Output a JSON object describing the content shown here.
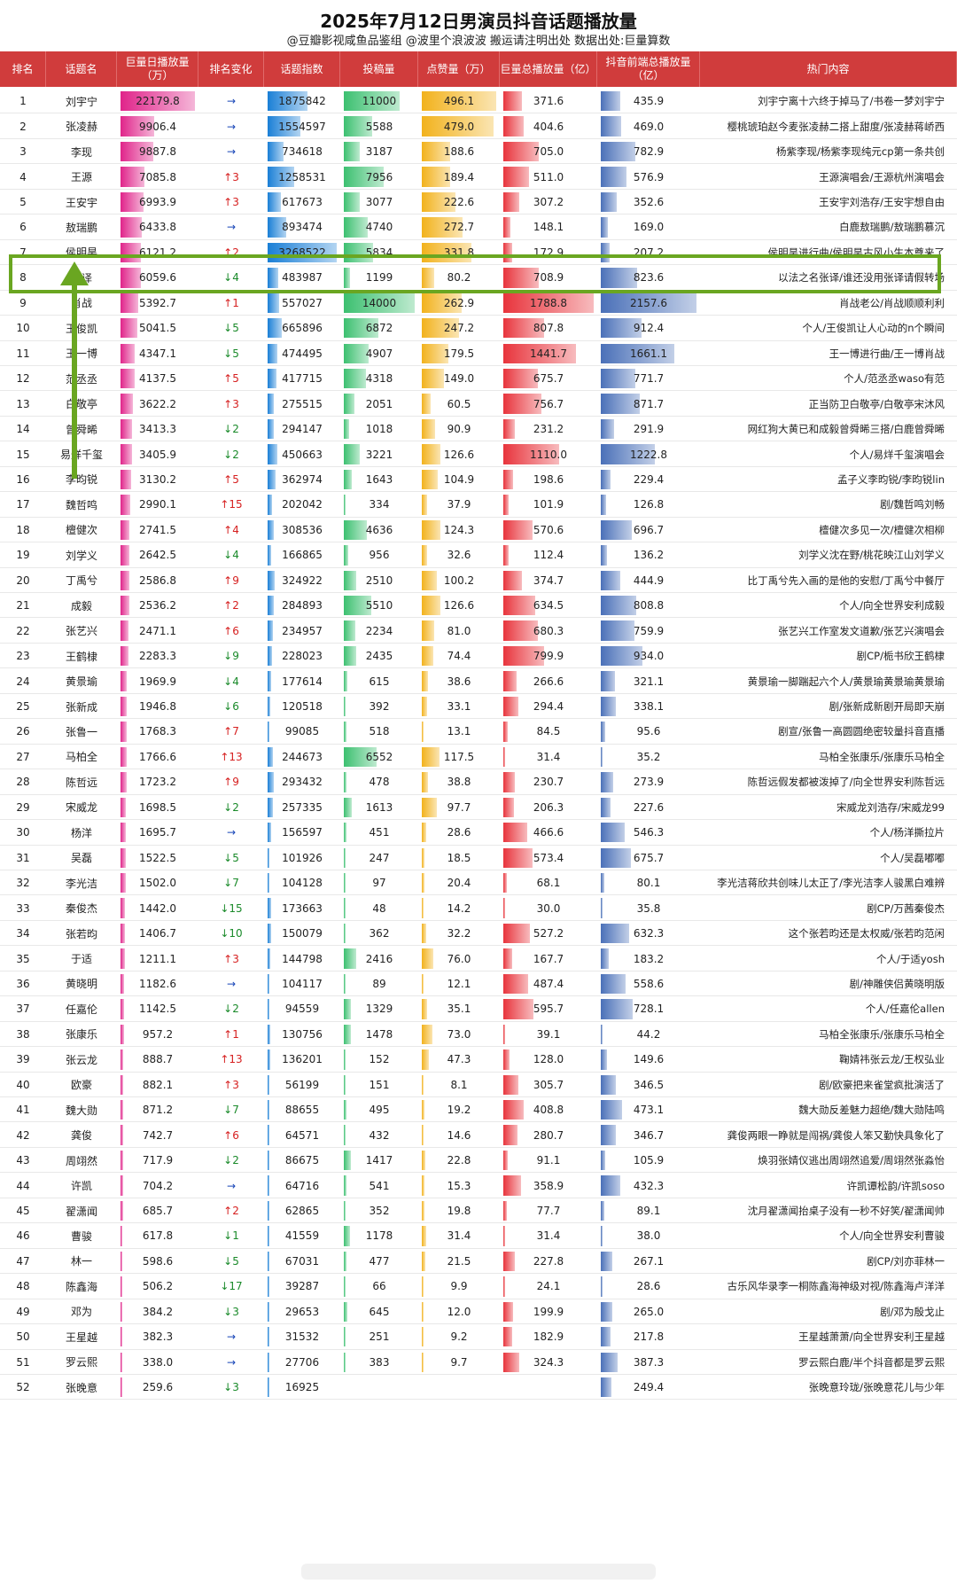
{
  "title": "2025年7月12日男演员抖音话题播放量",
  "subtitle": "@豆瓣影视咸鱼品鉴组 @波里个浪波波  搬运请注明出处  数据出处:巨量算数",
  "headers": [
    "排名",
    "话题名",
    "巨量日播放量（万）",
    "排名变化",
    "话题指数",
    "投稿量",
    "点赞量（万）",
    "巨量总播放量（亿）",
    "抖音前端总播放量（亿）",
    "热门内容"
  ],
  "colors": {
    "header": "#d03c3c",
    "col2": "#e0248a",
    "col4": "#1a7fd6",
    "col5": "#3cc070",
    "col6": "#f2b21c",
    "col7": "#e8343c",
    "col8": "#4a70b8",
    "highlight": "#6aa621"
  },
  "chart_data": {
    "type": "table",
    "columns": [
      "排名",
      "话题名",
      "巨量日播放量（万）",
      "排名变化",
      "话题指数",
      "投稿量",
      "点赞量（万）",
      "巨量总播放量（亿）",
      "抖音前端总播放量（亿）",
      "热门内容"
    ],
    "rows": [
      [
        "1",
        "刘宇宁",
        "22179.8",
        "→",
        "1875842",
        "11000",
        "496.1",
        "371.6",
        "435.9",
        "刘宇宁离十六终于掉马了/书卷一梦刘宇宁"
      ],
      [
        "2",
        "张凌赫",
        "9906.4",
        "→",
        "1554597",
        "5588",
        "479.0",
        "404.6",
        "469.0",
        "樱桃琥珀赵今麦张凌赫二搭上甜度/张凌赫蒋峤西"
      ],
      [
        "3",
        "李现",
        "9887.8",
        "→",
        "734618",
        "3187",
        "188.6",
        "705.0",
        "782.9",
        "杨紫李现/杨紫李现纯元cp第一条共创"
      ],
      [
        "4",
        "王源",
        "7085.8",
        "↑3",
        "1258531",
        "7956",
        "189.4",
        "511.0",
        "576.9",
        "王源演唱会/王源杭州演唱会"
      ],
      [
        "5",
        "王安宇",
        "6993.9",
        "↑3",
        "617673",
        "3077",
        "222.6",
        "307.2",
        "352.6",
        "王安宇刘浩存/王安宇想自由"
      ],
      [
        "6",
        "敖瑞鹏",
        "6433.8",
        "→",
        "893474",
        "4740",
        "272.7",
        "148.1",
        "169.0",
        "白鹿敖瑞鹏/敖瑞鹏慕沉"
      ],
      [
        "7",
        "侯明昊",
        "6121.2",
        "↑2",
        "3268522",
        "5834",
        "331.8",
        "172.9",
        "207.2",
        "侯明昊进行曲/侯明昊古风小生本尊来了"
      ],
      [
        "8",
        "张译",
        "6059.6",
        "↓4",
        "483987",
        "1199",
        "80.2",
        "708.9",
        "823.6",
        "以法之名张译/谁还没用张译请假转场"
      ],
      [
        "9",
        "肖战",
        "5392.7",
        "↑1",
        "557027",
        "14000",
        "262.9",
        "1788.8",
        "2157.6",
        "肖战老公/肖战顺顺利利"
      ],
      [
        "10",
        "王俊凯",
        "5041.5",
        "↓5",
        "665896",
        "6872",
        "247.2",
        "807.8",
        "912.4",
        "个人/王俊凯让人心动的n个瞬间"
      ],
      [
        "11",
        "王一博",
        "4347.1",
        "↓5",
        "474495",
        "4907",
        "179.5",
        "1441.7",
        "1661.1",
        "王一博进行曲/王一博肖战"
      ],
      [
        "12",
        "范丞丞",
        "4137.5",
        "↑5",
        "417715",
        "4318",
        "149.0",
        "675.7",
        "771.7",
        "个人/范丞丞waso有范"
      ],
      [
        "13",
        "白敬亭",
        "3622.2",
        "↑3",
        "275515",
        "2051",
        "60.5",
        "756.7",
        "871.7",
        "正当防卫白敬亭/白敬亭宋沐风"
      ],
      [
        "14",
        "曾舜晞",
        "3413.3",
        "↓2",
        "294147",
        "1018",
        "90.9",
        "231.2",
        "291.9",
        "网红狗大黄已和成毅曾舜晞三搭/白鹿曾舜晞"
      ],
      [
        "15",
        "易烊千玺",
        "3405.9",
        "↓2",
        "450663",
        "3221",
        "126.6",
        "1110.0",
        "1222.8",
        "个人/易烊千玺演唱会"
      ],
      [
        "16",
        "李昀锐",
        "3130.2",
        "↑5",
        "362974",
        "1643",
        "104.9",
        "198.6",
        "229.4",
        "孟子义李昀锐/李昀锐lin"
      ],
      [
        "17",
        "魏哲鸣",
        "2990.1",
        "↑15",
        "202042",
        "334",
        "37.9",
        "101.9",
        "126.8",
        "剧/魏哲鸣刘畅"
      ],
      [
        "18",
        "檀健次",
        "2741.5",
        "↑4",
        "308536",
        "4636",
        "124.3",
        "570.6",
        "696.7",
        "檀健次多见一次/檀健次相柳"
      ],
      [
        "19",
        "刘学义",
        "2642.5",
        "↓4",
        "166865",
        "956",
        "32.6",
        "112.4",
        "136.2",
        "刘学义沈在野/桃花映江山刘学义"
      ],
      [
        "20",
        "丁禹兮",
        "2586.8",
        "↑9",
        "324922",
        "2510",
        "100.2",
        "374.7",
        "444.9",
        "比丁禹兮先入画的是他的安慰/丁禹兮中餐厅"
      ],
      [
        "21",
        "成毅",
        "2536.2",
        "↑2",
        "284893",
        "5510",
        "126.6",
        "634.5",
        "808.8",
        "个人/向全世界安利成毅"
      ],
      [
        "22",
        "张艺兴",
        "2471.1",
        "↑6",
        "234957",
        "2234",
        "81.0",
        "680.3",
        "759.9",
        "张艺兴工作室发文道歉/张艺兴演唱会"
      ],
      [
        "23",
        "王鹤棣",
        "2283.3",
        "↓9",
        "228023",
        "2435",
        "74.4",
        "799.9",
        "934.0",
        "剧CP/栀书欣王鹤棣"
      ],
      [
        "24",
        "黄景瑜",
        "1969.9",
        "↓4",
        "177614",
        "615",
        "38.6",
        "266.6",
        "321.1",
        "黄景瑜一脚踹起六个人/黄景瑜黄景瑜黄景瑜"
      ],
      [
        "25",
        "张新成",
        "1946.8",
        "↓6",
        "120518",
        "392",
        "33.1",
        "294.4",
        "338.1",
        "剧/张新成新剧开局即天崩"
      ],
      [
        "26",
        "张鲁一",
        "1768.3",
        "↑7",
        "99085",
        "518",
        "13.1",
        "84.5",
        "95.6",
        "剧宣/张鲁一高圆圆绝密较量抖音直播"
      ],
      [
        "27",
        "马柏全",
        "1766.6",
        "↑13",
        "244673",
        "6552",
        "117.5",
        "31.4",
        "35.2",
        "马柏全张康乐/张康乐马柏全"
      ],
      [
        "28",
        "陈哲远",
        "1723.2",
        "↑9",
        "293432",
        "478",
        "38.8",
        "230.7",
        "273.9",
        "陈哲远假发都被泼掉了/向全世界安利陈哲远"
      ],
      [
        "29",
        "宋威龙",
        "1698.5",
        "↓2",
        "257335",
        "1613",
        "97.7",
        "206.3",
        "227.6",
        "宋威龙刘浩存/宋威龙99"
      ],
      [
        "30",
        "杨洋",
        "1695.7",
        "→",
        "156597",
        "451",
        "28.6",
        "466.6",
        "546.3",
        "个人/杨洋撕拉片"
      ],
      [
        "31",
        "吴磊",
        "1522.5",
        "↓5",
        "101926",
        "247",
        "18.5",
        "573.4",
        "675.7",
        "个人/吴磊嘟嘟"
      ],
      [
        "32",
        "李光洁",
        "1502.0",
        "↓7",
        "104128",
        "97",
        "20.4",
        "68.1",
        "80.1",
        "李光洁蒋欣共创味儿太正了/李光洁李人骏黑白难辨"
      ],
      [
        "33",
        "秦俊杰",
        "1442.0",
        "↓15",
        "173663",
        "48",
        "14.2",
        "30.0",
        "35.8",
        "剧CP/万茜秦俊杰"
      ],
      [
        "34",
        "张若昀",
        "1406.7",
        "↓10",
        "150079",
        "362",
        "32.2",
        "527.2",
        "632.3",
        "这个张若昀还是太权威/张若昀范闲"
      ],
      [
        "35",
        "于适",
        "1211.1",
        "↑3",
        "144798",
        "2416",
        "76.0",
        "167.7",
        "183.2",
        "个人/于适yosh"
      ],
      [
        "36",
        "黄晓明",
        "1182.6",
        "→",
        "104117",
        "89",
        "12.1",
        "487.4",
        "558.6",
        "剧/神雕侠侣黄晓明版"
      ],
      [
        "37",
        "任嘉伦",
        "1142.5",
        "↓2",
        "94559",
        "1329",
        "35.1",
        "595.7",
        "728.1",
        "个人/任嘉伦allen"
      ],
      [
        "38",
        "张康乐",
        "957.2",
        "↑1",
        "130756",
        "1478",
        "73.0",
        "39.1",
        "44.2",
        "马柏全张康乐/张康乐马柏全"
      ],
      [
        "39",
        "张云龙",
        "888.7",
        "↑13",
        "136201",
        "152",
        "47.3",
        "128.0",
        "149.6",
        "鞠婧祎张云龙/王权弘业"
      ],
      [
        "40",
        "欧豪",
        "882.1",
        "↑3",
        "56199",
        "151",
        "8.1",
        "305.7",
        "346.5",
        "剧/欧豪把来雀堂疯批演活了"
      ],
      [
        "41",
        "魏大勋",
        "871.2",
        "↓7",
        "88655",
        "495",
        "19.2",
        "408.8",
        "473.1",
        "魏大勋反差魅力超绝/魏大勋陆鸣"
      ],
      [
        "42",
        "龚俊",
        "742.7",
        "↑6",
        "64571",
        "432",
        "14.6",
        "280.7",
        "346.7",
        "龚俊两眼一睁就是闯祸/龚俊人笨又勤快具象化了"
      ],
      [
        "43",
        "周翊然",
        "717.9",
        "↓2",
        "86675",
        "1417",
        "22.8",
        "91.1",
        "105.9",
        "焕羽张婧仪逃出周翊然追爱/周翊然张淼怡"
      ],
      [
        "44",
        "许凯",
        "704.2",
        "→",
        "64716",
        "541",
        "15.3",
        "358.9",
        "432.3",
        "许凯谭松韵/许凯soso"
      ],
      [
        "45",
        "翟潇闻",
        "685.7",
        "↑2",
        "62865",
        "352",
        "19.8",
        "77.7",
        "89.1",
        "沈月翟潇闻抬桌子没有一秒不好笑/翟潇闻帅"
      ],
      [
        "46",
        "曹骏",
        "617.8",
        "↓1",
        "41559",
        "1178",
        "31.4",
        "31.4",
        "38.0",
        "个人/向全世界安利曹骏"
      ],
      [
        "47",
        "林一",
        "598.6",
        "↓5",
        "67031",
        "477",
        "21.5",
        "227.8",
        "267.1",
        "剧CP/刘亦菲林一"
      ],
      [
        "48",
        "陈鑫海",
        "506.2",
        "↓17",
        "39287",
        "66",
        "9.9",
        "24.1",
        "28.6",
        "古乐风华录李一桐陈鑫海神级对视/陈鑫海卢洋洋"
      ],
      [
        "49",
        "邓为",
        "384.2",
        "↓3",
        "29653",
        "645",
        "12.0",
        "199.9",
        "265.0",
        "剧/邓为殷戈止"
      ],
      [
        "50",
        "王星越",
        "382.3",
        "→",
        "31532",
        "251",
        "9.2",
        "182.9",
        "217.8",
        "王星越萧萧/向全世界安利王星越"
      ],
      [
        "51",
        "罗云熙",
        "338.0",
        "→",
        "27706",
        "383",
        "9.7",
        "324.3",
        "387.3",
        "罗云熙白鹿/半个抖音都是罗云熙"
      ],
      [
        "52",
        "张晚意",
        "259.6",
        "↓3",
        "16925",
        "",
        "",
        "",
        "249.4",
        "张晚意玲珑/张晚意花儿与少年"
      ]
    ]
  }
}
